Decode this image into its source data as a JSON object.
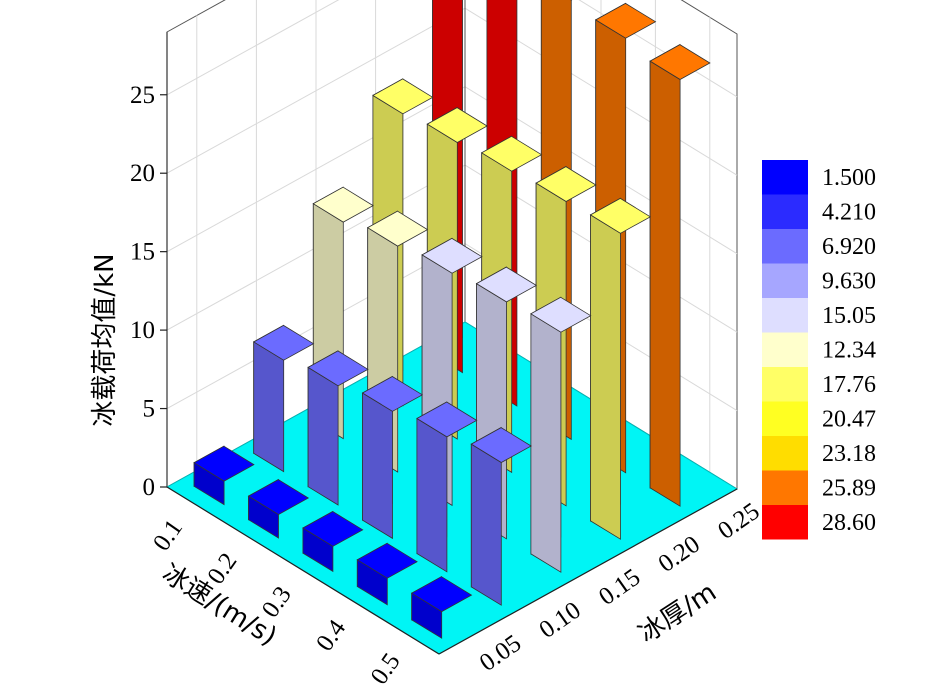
{
  "chart_data": {
    "type": "bar3d",
    "title": "",
    "zlabel": "冰载荷均值/kN",
    "xlabel": "冰速/(m/s)",
    "ylabel": "冰厚/m",
    "x_ticks": [
      "0.1",
      "0.2",
      "0.3",
      "0.4",
      "0.5"
    ],
    "y_ticks": [
      "0.05",
      "0.10",
      "0.15",
      "0.20",
      "0.25"
    ],
    "z_ticks": [
      "0",
      "5",
      "10",
      "15",
      "20",
      "25"
    ],
    "zlim": [
      0,
      29
    ],
    "grid": true,
    "floor_color": "#00f5f5",
    "rows": [
      {
        "thickness": "0.05",
        "values": [
          1.5,
          1.5,
          1.6,
          1.7,
          1.7
        ]
      },
      {
        "thickness": "0.10",
        "values": [
          7.1,
          7.6,
          8.1,
          8.6,
          9.1
        ]
      },
      {
        "thickness": "0.15",
        "values": [
          13.8,
          14.4,
          14.8,
          15.1,
          15.3
        ]
      },
      {
        "thickness": "0.20",
        "values": [
          18.6,
          18.9,
          19.2,
          19.4,
          19.5
        ]
      },
      {
        "thickness": "0.25",
        "values": [
          28.6,
          28.3,
          28.0,
          27.7,
          27.2
        ]
      }
    ],
    "legend": {
      "placement": "right",
      "levels": [
        {
          "label": "1.500",
          "color": "#0000ff"
        },
        {
          "label": "4.210",
          "color": "#2b2bff"
        },
        {
          "label": "6.920",
          "color": "#6b6bff"
        },
        {
          "label": "9.630",
          "color": "#a6a6ff"
        },
        {
          "label": "15.05",
          "color": "#dedeff"
        },
        {
          "label": "12.34",
          "color": "#ffffcc"
        },
        {
          "label": "17.76",
          "color": "#ffff66"
        },
        {
          "label": "20.47",
          "color": "#ffff22"
        },
        {
          "label": "23.18",
          "color": "#ffdd00"
        },
        {
          "label": "25.89",
          "color": "#ff7700"
        },
        {
          "label": "28.60",
          "color": "#ff0000"
        }
      ]
    }
  }
}
